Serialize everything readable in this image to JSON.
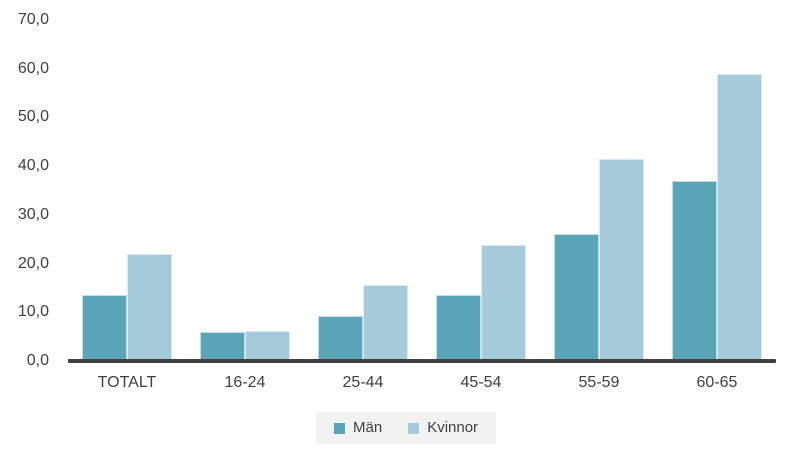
{
  "chart_data": {
    "type": "bar",
    "categories": [
      "TOTALT",
      "16-24",
      "25-44",
      "45-54",
      "55-59",
      "60-65"
    ],
    "series": [
      {
        "name": "Män",
        "color": "#5aa4b8",
        "border_color": "#c3dde6",
        "values": [
          13.5,
          6.0,
          9.2,
          13.6,
          26.1,
          37.0
        ]
      },
      {
        "name": "Kvinnor",
        "color": "#a5cbda",
        "border_color": "#dcebf2",
        "values": [
          22.0,
          6.1,
          15.6,
          23.8,
          41.5,
          59.0
        ]
      }
    ],
    "yticks": [
      "0,0",
      "10,0",
      "20,0",
      "30,0",
      "40,0",
      "50,0",
      "60,0",
      "70,0"
    ],
    "ylim": [
      0,
      70
    ],
    "grid": false,
    "legend_position": "bottom"
  },
  "colors": {
    "text": "#404040",
    "axis_line": "#404040",
    "legend_background": "#f2f2f2",
    "background": "#ffffff"
  }
}
